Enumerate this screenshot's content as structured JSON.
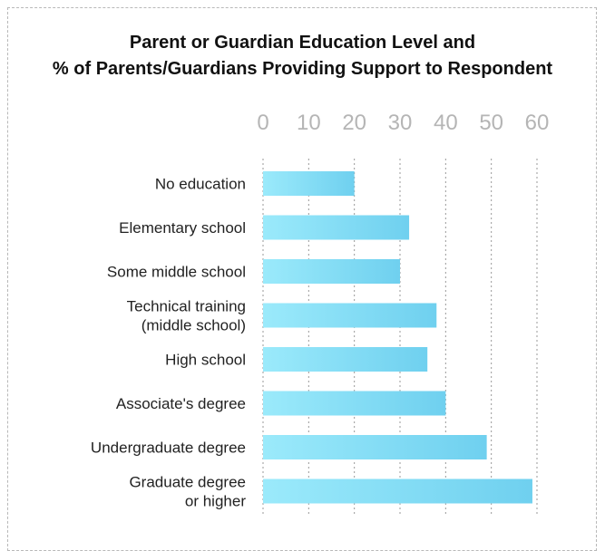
{
  "chart_data": {
    "type": "bar",
    "orientation": "horizontal",
    "title": [
      "Parent or Guardian Education Level and",
      "% of Parents/Guardians Providing Support to Respondent"
    ],
    "categories": [
      [
        "No education"
      ],
      [
        "Elementary school"
      ],
      [
        "Some middle school"
      ],
      [
        "Technical training",
        "(middle school)"
      ],
      [
        "High school"
      ],
      [
        "Associate's degree"
      ],
      [
        "Undergraduate degree"
      ],
      [
        "Graduate degree",
        "or higher"
      ]
    ],
    "values": [
      20,
      32,
      30,
      38,
      36,
      40,
      49,
      59
    ],
    "xlim": [
      0,
      60
    ],
    "xticks": [
      0,
      10,
      20,
      30,
      40,
      50,
      60
    ],
    "tick_position": "top",
    "grid": "vertical-dotted",
    "colors": {
      "bar_light": "#9beafb",
      "bar_dark": "#6fd0ef",
      "grid": "#9a9a9a",
      "tick_text": "#b5b5b5"
    }
  }
}
